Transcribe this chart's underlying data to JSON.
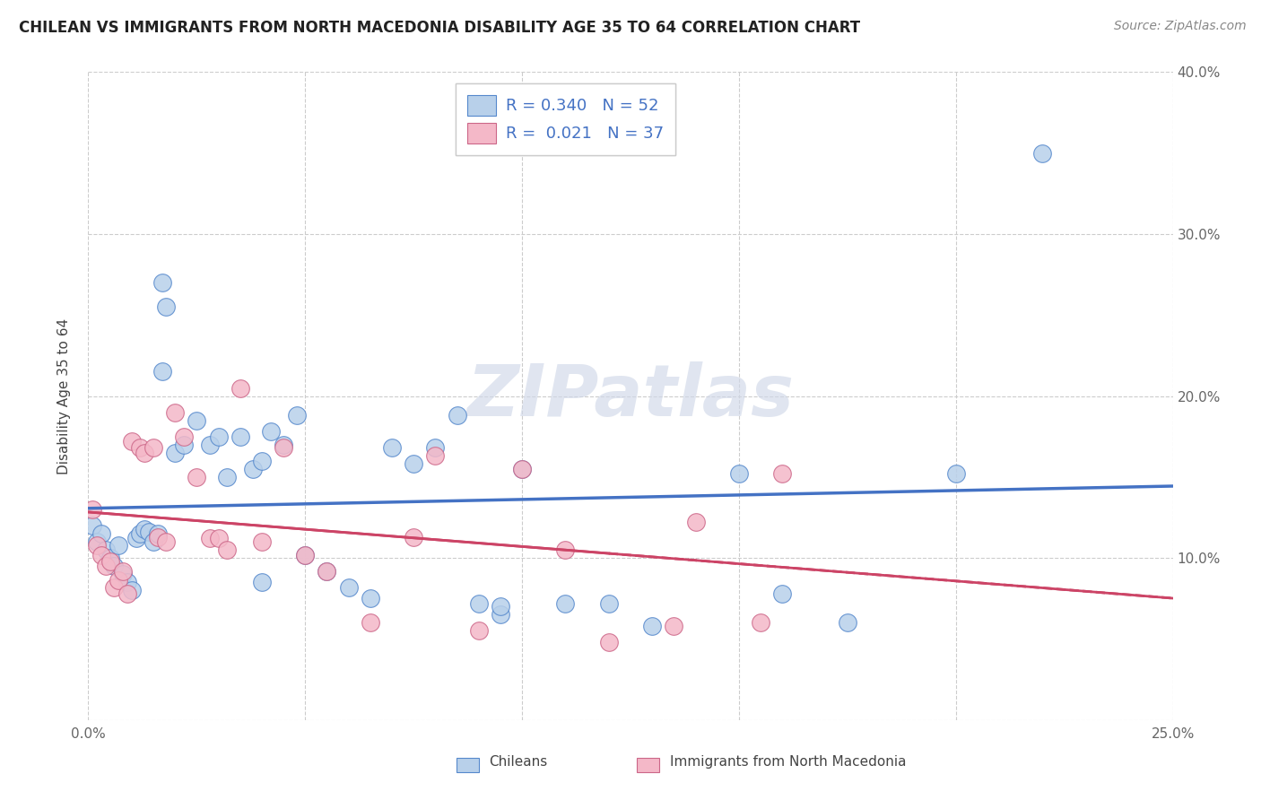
{
  "title": "CHILEAN VS IMMIGRANTS FROM NORTH MACEDONIA DISABILITY AGE 35 TO 64 CORRELATION CHART",
  "source": "Source: ZipAtlas.com",
  "ylabel": "Disability Age 35 to 64",
  "xlim": [
    0.0,
    0.25
  ],
  "ylim": [
    0.0,
    0.4
  ],
  "xticks": [
    0.0,
    0.05,
    0.1,
    0.15,
    0.2,
    0.25
  ],
  "yticks": [
    0.0,
    0.1,
    0.2,
    0.3,
    0.4
  ],
  "chilean_R": "0.340",
  "chilean_N": "52",
  "nortmac_R": "0.021",
  "nortmac_N": "37",
  "chilean_face": "#b8d0ea",
  "nortmac_face": "#f4b8c8",
  "chilean_edge": "#5588cc",
  "nortmac_edge": "#cc6688",
  "chilean_line": "#4472c4",
  "nortmac_line": "#cc4466",
  "watermark_color": "#d0d8e8",
  "legend_text_color": "#4472c4",
  "tick_color": "#666666",
  "watermark": "ZIPatlas",
  "chileans_x": [
    0.001,
    0.002,
    0.003,
    0.004,
    0.005,
    0.006,
    0.007,
    0.008,
    0.009,
    0.01,
    0.011,
    0.012,
    0.013,
    0.014,
    0.015,
    0.016,
    0.017,
    0.018,
    0.02,
    0.022,
    0.025,
    0.028,
    0.03,
    0.032,
    0.035,
    0.038,
    0.04,
    0.042,
    0.045,
    0.048,
    0.05,
    0.055,
    0.06,
    0.065,
    0.07,
    0.075,
    0.08,
    0.085,
    0.09,
    0.095,
    0.1,
    0.11,
    0.12,
    0.13,
    0.15,
    0.16,
    0.175,
    0.2,
    0.22,
    0.017,
    0.04,
    0.095
  ],
  "chileans_y": [
    0.12,
    0.11,
    0.115,
    0.105,
    0.1,
    0.095,
    0.108,
    0.09,
    0.085,
    0.08,
    0.112,
    0.115,
    0.118,
    0.116,
    0.11,
    0.115,
    0.27,
    0.255,
    0.165,
    0.17,
    0.185,
    0.17,
    0.175,
    0.15,
    0.175,
    0.155,
    0.16,
    0.178,
    0.17,
    0.188,
    0.102,
    0.092,
    0.082,
    0.075,
    0.168,
    0.158,
    0.168,
    0.188,
    0.072,
    0.065,
    0.155,
    0.072,
    0.072,
    0.058,
    0.152,
    0.078,
    0.06,
    0.152,
    0.35,
    0.215,
    0.085,
    0.07
  ],
  "immigrants_x": [
    0.001,
    0.002,
    0.003,
    0.004,
    0.005,
    0.006,
    0.007,
    0.008,
    0.009,
    0.01,
    0.012,
    0.013,
    0.015,
    0.016,
    0.018,
    0.02,
    0.022,
    0.025,
    0.028,
    0.03,
    0.032,
    0.035,
    0.04,
    0.045,
    0.05,
    0.055,
    0.065,
    0.075,
    0.08,
    0.09,
    0.1,
    0.11,
    0.12,
    0.135,
    0.14,
    0.155,
    0.16
  ],
  "immigrants_y": [
    0.13,
    0.108,
    0.102,
    0.095,
    0.098,
    0.082,
    0.086,
    0.092,
    0.078,
    0.172,
    0.168,
    0.165,
    0.168,
    0.113,
    0.11,
    0.19,
    0.175,
    0.15,
    0.112,
    0.112,
    0.105,
    0.205,
    0.11,
    0.168,
    0.102,
    0.092,
    0.06,
    0.113,
    0.163,
    0.055,
    0.155,
    0.105,
    0.048,
    0.058,
    0.122,
    0.06,
    0.152
  ]
}
